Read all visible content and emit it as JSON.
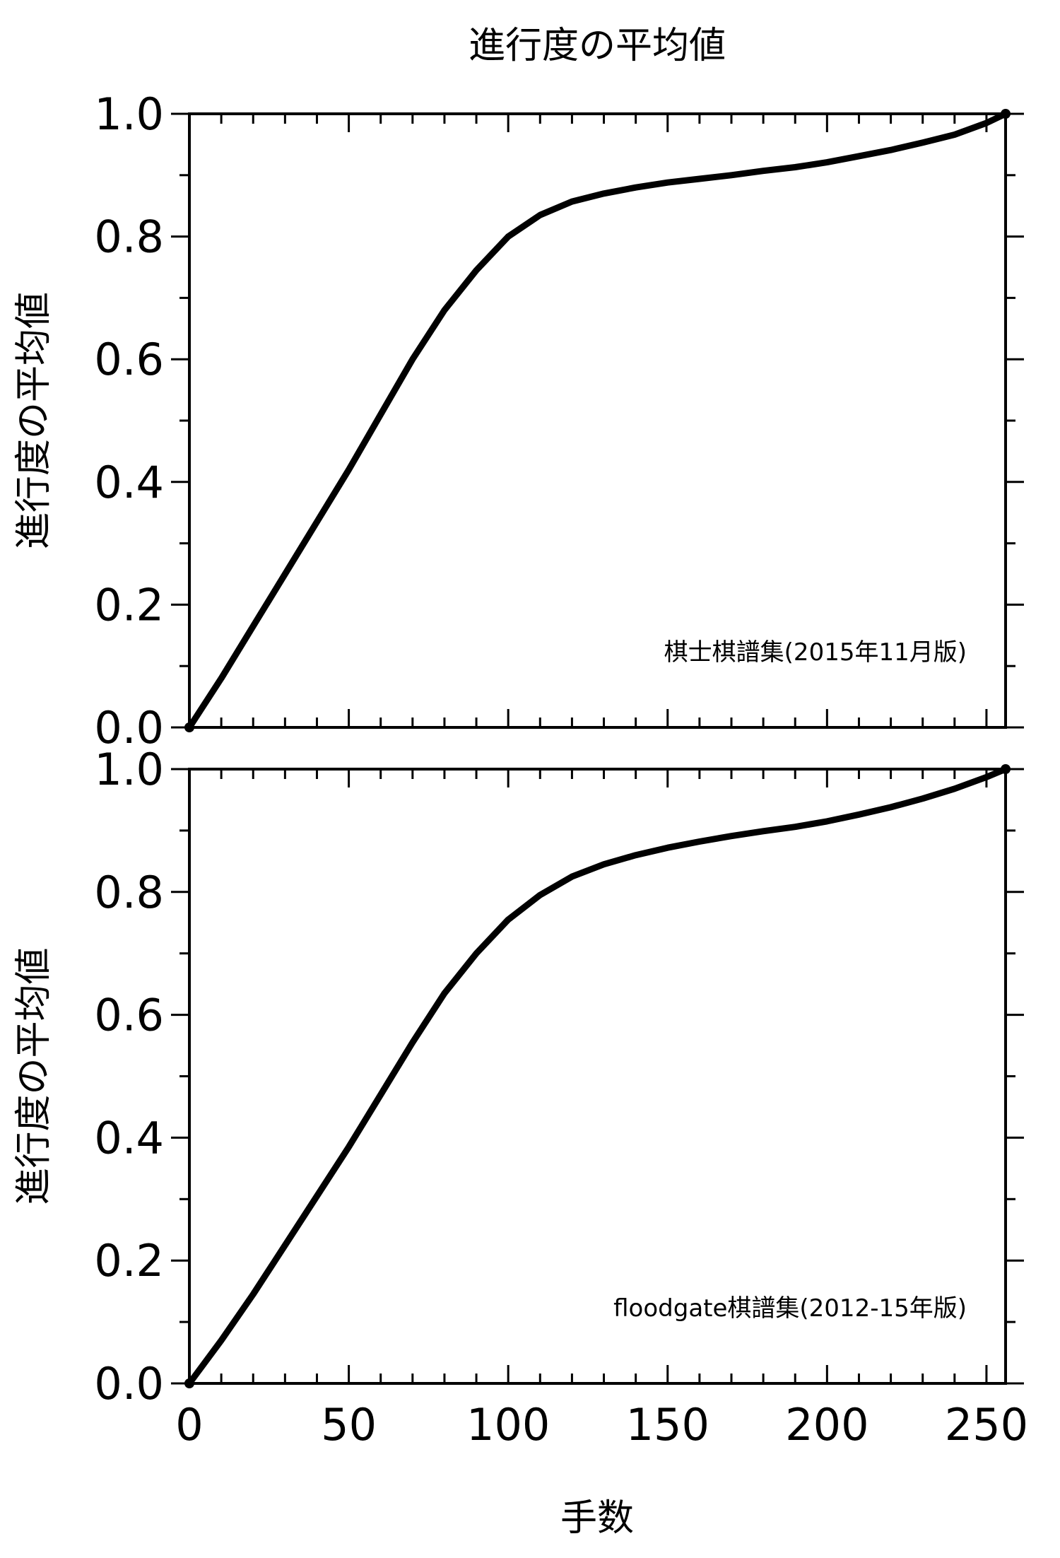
{
  "title": "進行度の平均値",
  "xlabel": "手数",
  "chart_data": [
    {
      "type": "line",
      "panel": "top",
      "ylabel": "進行度の平均値",
      "annotation": "棋士棋譜集(2015年11月版)",
      "xlim": [
        0,
        256
      ],
      "ylim": [
        0,
        1.0
      ],
      "x_ticks": [
        "0",
        "50",
        "100",
        "150",
        "200",
        "250"
      ],
      "y_ticks": [
        "0.0",
        "0.2",
        "0.4",
        "0.6",
        "0.8",
        "1.0"
      ],
      "series": [
        {
          "x": [
            0,
            10,
            20,
            30,
            40,
            50,
            60,
            70,
            80,
            90,
            100,
            110,
            120,
            130,
            140,
            150,
            160,
            170,
            180,
            190,
            200,
            210,
            220,
            230,
            240,
            250,
            256
          ],
          "y": [
            0,
            0.08,
            0.165,
            0.25,
            0.335,
            0.42,
            0.51,
            0.6,
            0.68,
            0.745,
            0.8,
            0.835,
            0.857,
            0.87,
            0.88,
            0.888,
            0.894,
            0.9,
            0.907,
            0.913,
            0.921,
            0.931,
            0.941,
            0.953,
            0.966,
            0.985,
            1.0
          ]
        }
      ]
    },
    {
      "type": "line",
      "panel": "bottom",
      "ylabel": "進行度の平均値",
      "annotation": "floodgate棋譜集(2012-15年版)",
      "xlim": [
        0,
        256
      ],
      "ylim": [
        0,
        1.0
      ],
      "x_ticks": [
        "0",
        "50",
        "100",
        "150",
        "200",
        "250"
      ],
      "y_ticks": [
        "0.0",
        "0.2",
        "0.4",
        "0.6",
        "0.8",
        "1.0"
      ],
      "series": [
        {
          "x": [
            0,
            10,
            20,
            30,
            40,
            50,
            60,
            70,
            80,
            90,
            100,
            110,
            120,
            130,
            140,
            150,
            160,
            170,
            180,
            190,
            200,
            210,
            220,
            230,
            240,
            250,
            256
          ],
          "y": [
            0,
            0.07,
            0.145,
            0.225,
            0.305,
            0.385,
            0.47,
            0.555,
            0.635,
            0.7,
            0.755,
            0.795,
            0.825,
            0.845,
            0.86,
            0.872,
            0.882,
            0.891,
            0.899,
            0.906,
            0.915,
            0.926,
            0.938,
            0.952,
            0.968,
            0.987,
            1.0
          ]
        }
      ]
    }
  ]
}
